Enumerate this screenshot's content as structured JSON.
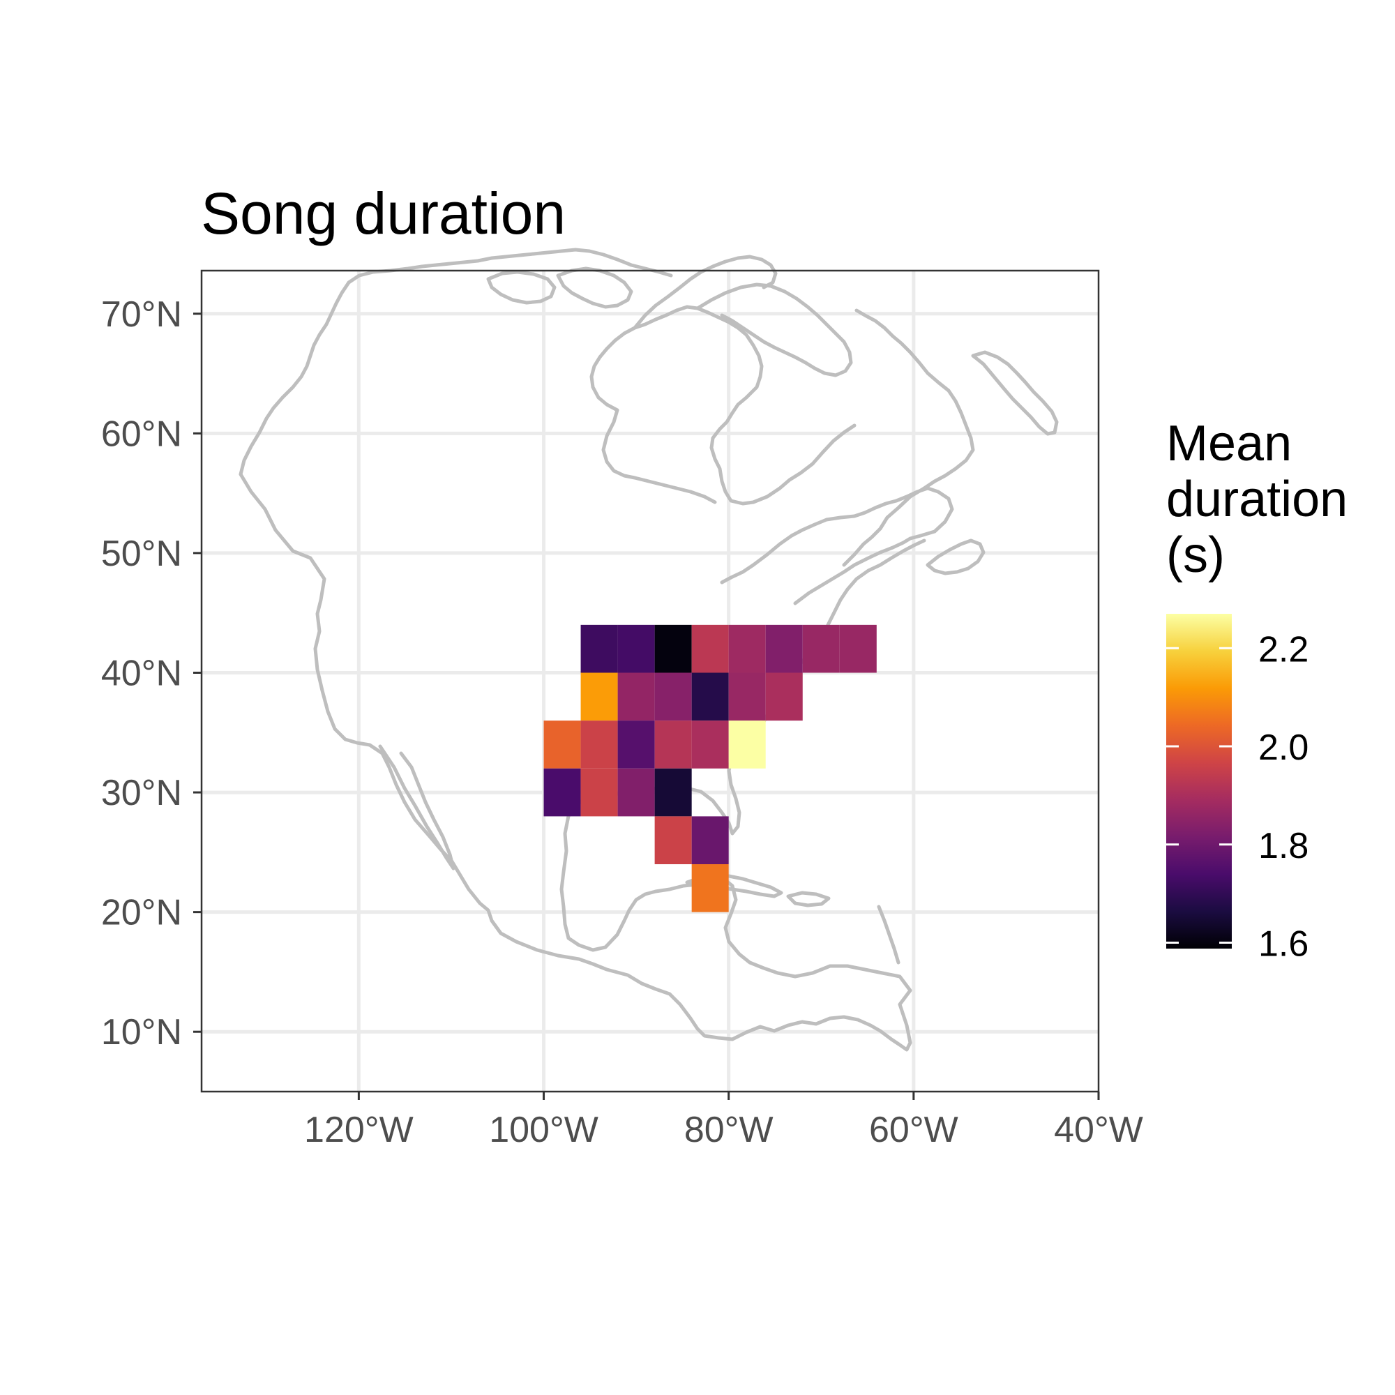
{
  "chart_data": {
    "type": "heatmap",
    "title": "Song duration",
    "x_ticks": [
      {
        "value": -120,
        "label": "120°W"
      },
      {
        "value": -100,
        "label": "100°W"
      },
      {
        "value": -80,
        "label": "80°W"
      },
      {
        "value": -60,
        "label": "60°W"
      },
      {
        "value": -40,
        "label": "40°W"
      }
    ],
    "y_ticks": [
      {
        "value": 10,
        "label": "10°N"
      },
      {
        "value": 20,
        "label": "20°N"
      },
      {
        "value": 30,
        "label": "30°N"
      },
      {
        "value": 40,
        "label": "40°N"
      },
      {
        "value": 50,
        "label": "50°N"
      },
      {
        "value": 60,
        "label": "60°N"
      },
      {
        "value": 70,
        "label": "70°N"
      }
    ],
    "xlim": [
      -137,
      -40
    ],
    "ylim": [
      5,
      73.6
    ],
    "grid": true,
    "cell_size_deg": 4,
    "cells": [
      {
        "lon": -94,
        "lat": 42,
        "value": 1.72
      },
      {
        "lon": -90,
        "lat": 42,
        "value": 1.73
      },
      {
        "lon": -86,
        "lat": 42,
        "value": 1.6
      },
      {
        "lon": -82,
        "lat": 42,
        "value": 1.93
      },
      {
        "lon": -78,
        "lat": 42,
        "value": 1.88
      },
      {
        "lon": -74,
        "lat": 42,
        "value": 1.83
      },
      {
        "lon": -70,
        "lat": 42,
        "value": 1.87
      },
      {
        "lon": -66,
        "lat": 42,
        "value": 1.87
      },
      {
        "lon": -94,
        "lat": 38,
        "value": 2.12
      },
      {
        "lon": -90,
        "lat": 38,
        "value": 1.86
      },
      {
        "lon": -86,
        "lat": 38,
        "value": 1.84
      },
      {
        "lon": -82,
        "lat": 38,
        "value": 1.68
      },
      {
        "lon": -78,
        "lat": 38,
        "value": 1.87
      },
      {
        "lon": -74,
        "lat": 38,
        "value": 1.9
      },
      {
        "lon": -98,
        "lat": 34,
        "value": 2.03
      },
      {
        "lon": -94,
        "lat": 34,
        "value": 1.96
      },
      {
        "lon": -90,
        "lat": 34,
        "value": 1.76
      },
      {
        "lon": -86,
        "lat": 34,
        "value": 1.92
      },
      {
        "lon": -82,
        "lat": 34,
        "value": 1.9
      },
      {
        "lon": -78,
        "lat": 34,
        "value": 2.27
      },
      {
        "lon": -98,
        "lat": 30,
        "value": 1.74
      },
      {
        "lon": -94,
        "lat": 30,
        "value": 1.96
      },
      {
        "lon": -90,
        "lat": 30,
        "value": 1.83
      },
      {
        "lon": -86,
        "lat": 30,
        "value": 1.65
      },
      {
        "lon": -86,
        "lat": 26,
        "value": 1.96
      },
      {
        "lon": -82,
        "lat": 26,
        "value": 1.79
      },
      {
        "lon": -82,
        "lat": 22,
        "value": 2.06
      }
    ],
    "legend": {
      "title_lines": [
        "Mean",
        "duration",
        "(s)"
      ],
      "min": 1.588,
      "max": 2.27,
      "ticks": [
        {
          "value": 1.6,
          "label": "1.6"
        },
        {
          "value": 1.8,
          "label": "1.8"
        },
        {
          "value": 2.0,
          "label": "2.0"
        },
        {
          "value": 2.2,
          "label": "2.2"
        }
      ],
      "position": "right",
      "colormap": "inferno"
    },
    "colors": {
      "coastline": "#bebebe",
      "gridline": "#ebebeb",
      "panel_border": "#333333",
      "inferno_stops": [
        "#000004",
        "#1b0c41",
        "#4a0c6b",
        "#781c6d",
        "#a52c60",
        "#cf4446",
        "#ed6925",
        "#fb9b06",
        "#f7d13d",
        "#fcffa4"
      ]
    }
  }
}
